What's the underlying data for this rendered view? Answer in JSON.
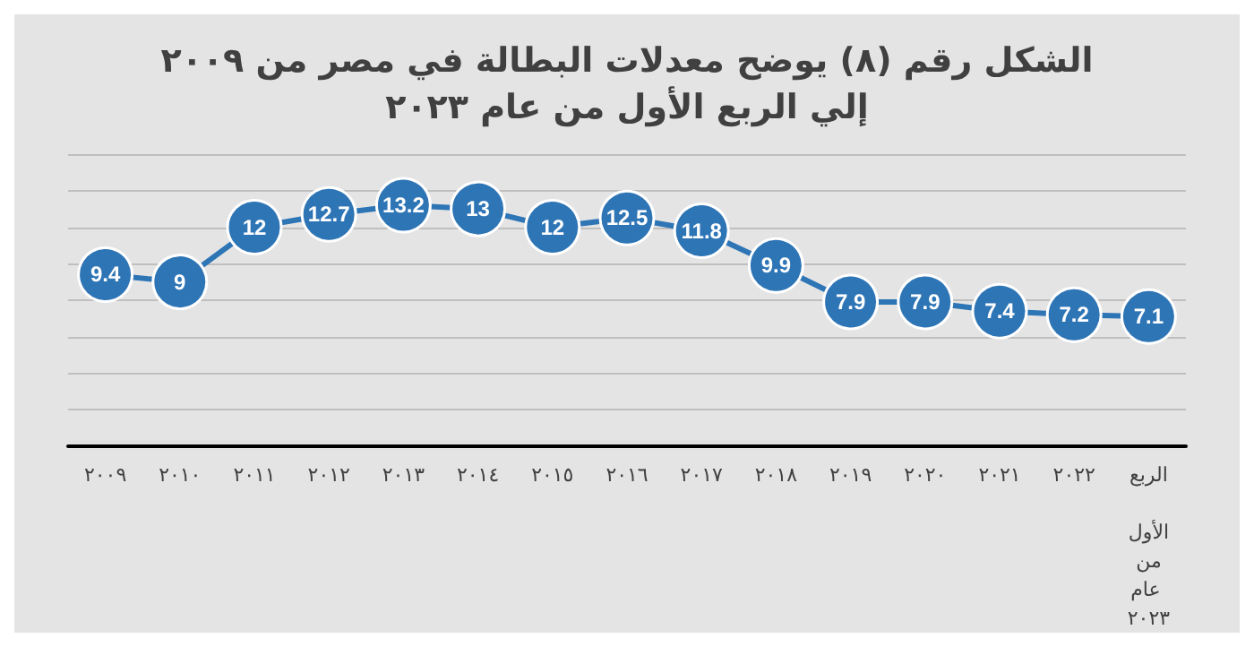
{
  "chart_data": {
    "type": "line",
    "title": "الشكل رقم (٨) يوضح معدلات البطالة في مصر من ٢٠٠٩\nإلي الربع الأول من عام ٢٠٢٣",
    "categories": [
      "٢٠٠٩",
      "٢٠١٠",
      "٢٠١١",
      "٢٠١٢",
      "٢٠١٣",
      "٢٠١٤",
      "٢٠١٥",
      "٢٠١٦",
      "٢٠١٧",
      "٢٠١٨",
      "٢٠١٩",
      "٢٠٢٠",
      "٢٠٢١",
      "٢٠٢٢",
      "الربع الأول من عام ٢٠٢٣"
    ],
    "series": [
      {
        "color": "#2e75b6",
        "values": [
          9.4,
          9,
          12,
          12.7,
          13.2,
          13,
          12,
          12.5,
          11.8,
          9.9,
          7.9,
          7.9,
          7.4,
          7.2,
          7.1
        ]
      }
    ],
    "ylim": [
      0,
      16
    ],
    "yticks": [
      0,
      2,
      4,
      6,
      8,
      10,
      12,
      14,
      16
    ],
    "tick_labels": "x",
    "grid": "y",
    "data_labels": true,
    "marker": "circle",
    "line_style": "solid"
  }
}
